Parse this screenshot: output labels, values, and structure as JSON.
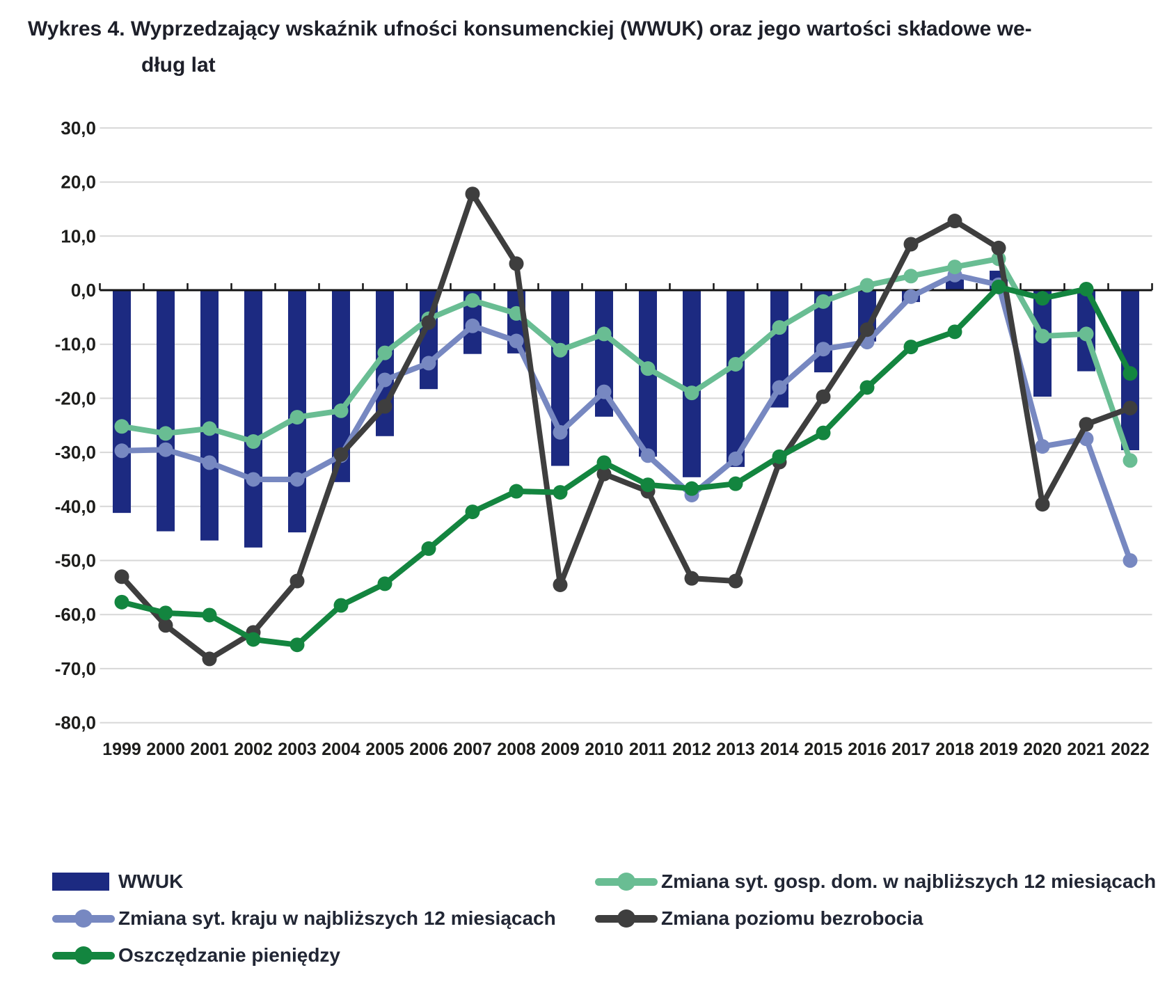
{
  "title": {
    "line1": "Wykres 4. Wyprzedzający wskaźnik ufności konsumenckiej (WWUK) oraz jego wartości składowe we-",
    "line2": "dług lat"
  },
  "chart_data": {
    "type": "combo-bar-line",
    "title": "Wykres 4. Wyprzedzający wskaźnik ufności konsumenckiej (WWUK) oraz jego wartości składowe według lat",
    "categories": [
      "1999",
      "2000",
      "2001",
      "2002",
      "2003",
      "2004",
      "2005",
      "2006",
      "2007",
      "2008",
      "2009",
      "2010",
      "2011",
      "2012",
      "2013",
      "2014",
      "2015",
      "2016",
      "2017",
      "2018",
      "2019",
      "2020",
      "2021",
      "2022"
    ],
    "y_axis": {
      "min": -80,
      "max": 30,
      "step": 10,
      "decimal_separator": "comma"
    },
    "grid": "horizontal",
    "legend_position": "bottom",
    "bar_series": {
      "key": "wwuk",
      "name": "WWUK",
      "color": "#1c2a81",
      "values": [
        -41.2,
        -44.6,
        -46.3,
        -47.6,
        -44.8,
        -35.5,
        -27.0,
        -18.3,
        -11.8,
        -11.7,
        -32.5,
        -23.4,
        -30.8,
        -34.6,
        -32.7,
        -21.7,
        -15.2,
        -9.5,
        -2.2,
        2.0,
        3.6,
        -19.7,
        -15.0,
        -29.6
      ]
    },
    "line_series": [
      {
        "key": "kraju",
        "name": "Zmiana syt. kraju w najbliższych 12 miesiącach",
        "color": "#7788c1",
        "values": [
          -29.7,
          -29.5,
          -31.9,
          -35.0,
          -35.0,
          -30.6,
          -16.6,
          -13.5,
          -6.6,
          -9.4,
          -26.3,
          -18.8,
          -30.6,
          -37.9,
          -31.2,
          -18.0,
          -10.9,
          -9.6,
          -1.2,
          2.8,
          1.0,
          -28.9,
          -27.5,
          -50.0
        ]
      },
      {
        "key": "gosp_dom",
        "name": "Zmiana syt. gosp. dom. w najbliższych 12 miesiącach",
        "color": "#69bd93",
        "values": [
          -25.2,
          -26.5,
          -25.6,
          -28.0,
          -23.5,
          -22.3,
          -11.6,
          -5.3,
          -1.9,
          -4.3,
          -11.1,
          -8.1,
          -14.5,
          -19.0,
          -13.7,
          -6.9,
          -2.1,
          0.9,
          2.6,
          4.3,
          5.8,
          -8.5,
          -8.1,
          -31.5
        ]
      },
      {
        "key": "bezrobocia",
        "name": "Zmiana poziomu bezrobocia",
        "color": "#3e3e3e",
        "values": [
          -53.0,
          -62.0,
          -68.2,
          -63.3,
          -53.8,
          -30.4,
          -21.5,
          -6.0,
          17.8,
          4.9,
          -54.5,
          -34.0,
          -37.2,
          -53.3,
          -53.8,
          -31.8,
          -19.7,
          -7.3,
          8.5,
          12.8,
          7.8,
          -39.6,
          -24.8,
          -21.8
        ]
      },
      {
        "key": "oszczedzanie",
        "name": "Oszczędzanie pieniędzy",
        "color": "#13853f",
        "values": [
          -57.7,
          -59.7,
          -60.1,
          -64.6,
          -65.6,
          -58.3,
          -54.3,
          -47.8,
          -41.0,
          -37.2,
          -37.4,
          -31.9,
          -36.0,
          -36.7,
          -35.8,
          -30.8,
          -26.4,
          -18.0,
          -10.5,
          -7.7,
          0.6,
          -1.5,
          0.2,
          -15.4
        ]
      }
    ]
  },
  "legend": {
    "items": [
      {
        "label": "WWUK",
        "swatch": "bar",
        "color": "#1c2a81"
      },
      {
        "label": "Zmiana syt. gosp. dom. w najbliższych 12 miesiącach",
        "swatch": "line",
        "color": "#69bd93"
      },
      {
        "label": "Zmiana syt. kraju w najbliższych 12 miesiącach",
        "swatch": "line",
        "color": "#7788c1"
      },
      {
        "label": "Zmiana poziomu bezrobocia",
        "swatch": "line",
        "color": "#3e3e3e"
      },
      {
        "label": "Oszczędzanie pieniędzy",
        "swatch": "line",
        "color": "#13853f"
      }
    ]
  }
}
